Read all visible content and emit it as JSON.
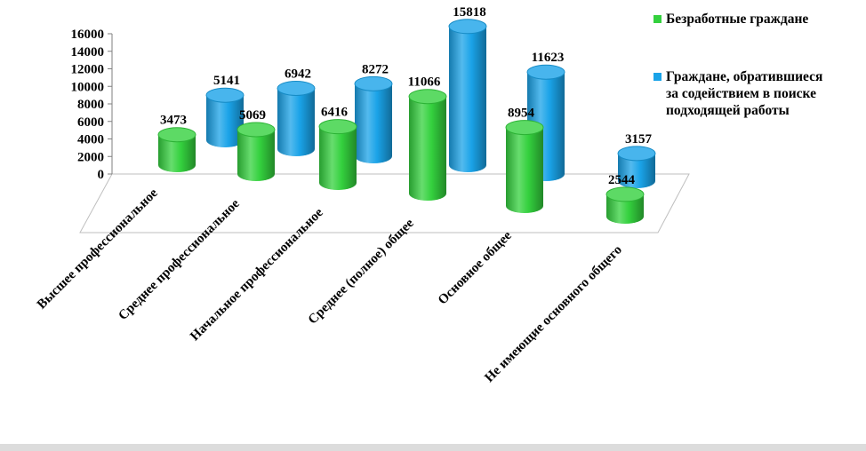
{
  "chart_data": {
    "type": "bar",
    "style": "3d-cylinder",
    "categories": [
      "Высшее профессиональное",
      "Среднее профессиональное",
      "Начальное профессиональное",
      "Среднее (полное) общее",
      "Основное общее",
      "Не имеющие основного общего"
    ],
    "series": [
      {
        "name": "Безработные граждане",
        "color": "#34d13e",
        "values": [
          3473,
          5069,
          6416,
          11066,
          8954,
          2544
        ]
      },
      {
        "name": "Граждане, обратившиеся за содействием в поиске подходящей работы",
        "color": "#1aa3e8",
        "values": [
          5141,
          6942,
          8272,
          15818,
          11623,
          3157
        ]
      }
    ],
    "ylim": [
      0,
      16000
    ],
    "yticks": [
      "0",
      "2000",
      "4000",
      "6000",
      "8000",
      "10000",
      "12000",
      "14000",
      "16000"
    ],
    "legend": {
      "position": "right",
      "items": [
        {
          "lines": [
            "Безработные граждане"
          ],
          "color": "#34d13e"
        },
        {
          "lines": [
            "Граждане, обратившиеся",
            "за содействием в поиске",
            "подходящей работы"
          ],
          "color": "#1aa3e8"
        }
      ]
    },
    "grid": false
  }
}
